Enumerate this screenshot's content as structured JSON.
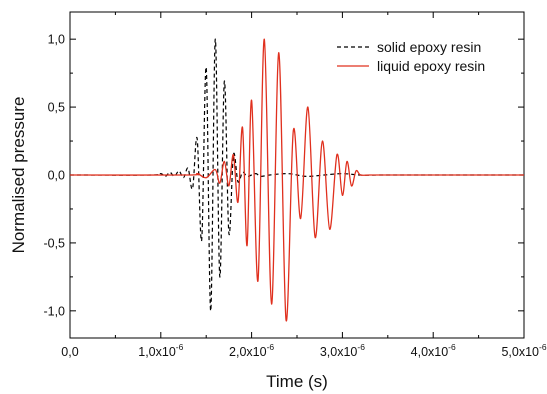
{
  "chart_data": {
    "type": "line",
    "xlabel": "Time (s)",
    "ylabel": "Normalised pressure",
    "xlim": [
      0,
      5e-06
    ],
    "ylim": [
      -1.2,
      1.2
    ],
    "x_ticks": [
      {
        "value": 0,
        "label": "0,0",
        "exp": ""
      },
      {
        "value": 1e-06,
        "label": "1,0x10",
        "exp": "-6"
      },
      {
        "value": 2e-06,
        "label": "2,0x10",
        "exp": "-6"
      },
      {
        "value": 3e-06,
        "label": "3,0x10",
        "exp": "-6"
      },
      {
        "value": 4e-06,
        "label": "4,0x10",
        "exp": "-6"
      },
      {
        "value": 5e-06,
        "label": "5,0x10",
        "exp": "-6"
      }
    ],
    "y_ticks": [
      {
        "value": 1.0,
        "label": "1,0"
      },
      {
        "value": 0.5,
        "label": "0,5"
      },
      {
        "value": 0.0,
        "label": "0,0"
      },
      {
        "value": -0.5,
        "label": "-0,5"
      },
      {
        "value": -1.0,
        "label": "-1,0"
      }
    ],
    "legend_position": "top-right",
    "series": [
      {
        "name": "solid epoxy resin",
        "color": "#000000",
        "style": "dashed",
        "x": [
          0,
          9e-07,
          1e-06,
          1.05e-06,
          1.1e-06,
          1.15e-06,
          1.2e-06,
          1.25e-06,
          1.3e-06,
          1.35e-06,
          1.4e-06,
          1.45e-06,
          1.5e-06,
          1.55e-06,
          1.6e-06,
          1.65e-06,
          1.7e-06,
          1.75e-06,
          1.8e-06,
          1.85e-06,
          1.9e-06,
          1.95e-06,
          2e-06,
          2.05e-06,
          2.1e-06,
          2.2e-06,
          2.4e-06,
          2.6e-06,
          2.8e-06,
          3e-06,
          3.2e-06,
          3.5e-06,
          4e-06,
          5e-06
        ],
        "y": [
          0,
          0,
          0.01,
          -0.01,
          0.02,
          -0.01,
          0.03,
          -0.02,
          0.05,
          -0.1,
          0.27,
          -0.48,
          0.79,
          -1.0,
          1.0,
          -0.75,
          0.69,
          -0.43,
          0.15,
          -0.05,
          0.02,
          -0.01,
          0.0,
          0.01,
          -0.01,
          0.0,
          0.01,
          -0.01,
          0.0,
          0.01,
          0.0,
          0.0,
          0.0,
          0.0
        ]
      },
      {
        "name": "liquid epoxy resin",
        "color": "#e0301e",
        "style": "solid",
        "x": [
          0,
          1.3e-06,
          1.4e-06,
          1.5e-06,
          1.6e-06,
          1.65e-06,
          1.7e-06,
          1.75e-06,
          1.8e-06,
          1.85e-06,
          1.9e-06,
          1.95e-06,
          2e-06,
          2.07e-06,
          2.14e-06,
          2.22e-06,
          2.3e-06,
          2.38e-06,
          2.46e-06,
          2.54e-06,
          2.62e-06,
          2.7e-06,
          2.78e-06,
          2.86e-06,
          2.94e-06,
          3e-06,
          3.05e-06,
          3.1e-06,
          3.15e-06,
          3.2e-06,
          3.3e-06,
          3.5e-06,
          4e-06,
          5e-06
        ],
        "y": [
          0,
          0,
          0.01,
          -0.02,
          0.04,
          -0.06,
          0.1,
          -0.08,
          0.15,
          -0.2,
          0.35,
          -0.52,
          0.55,
          -0.78,
          1.0,
          -0.95,
          0.9,
          -1.07,
          0.33,
          -0.32,
          0.5,
          -0.46,
          0.25,
          -0.4,
          0.15,
          -0.15,
          0.1,
          -0.08,
          0.03,
          0.0,
          0.0,
          0.0,
          0.0,
          0.0
        ]
      }
    ]
  }
}
